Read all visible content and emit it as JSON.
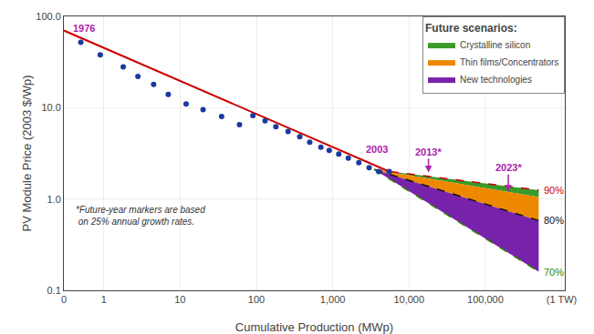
{
  "chart_data": {
    "type": "scatter",
    "xlabel": "Cumulative Production (MWp)",
    "ylabel": "PV Module Price (2003 $/Wp)",
    "log": true,
    "xlim": [
      0.3,
      1100000
    ],
    "ylim": [
      0.1,
      100.0
    ],
    "xticks": [
      {
        "value": 0.3,
        "label": "0"
      },
      1,
      10,
      100,
      {
        "value": 1000,
        "label": "1,000"
      },
      {
        "value": 10000,
        "label": "10,000"
      },
      {
        "value": 100000,
        "label": "100,000"
      },
      {
        "value": 1000000,
        "label": "(1 TW)"
      }
    ],
    "yticks": [
      0.1,
      {
        "value": 1.0,
        "label": "1.0"
      },
      {
        "value": 10.0,
        "label": "10.0"
      },
      {
        "value": 100.0,
        "label": "100.0"
      }
    ],
    "grid": true,
    "legend": "upper right",
    "legend_title": "Future scenarios:",
    "series": [
      {
        "type": "scatter",
        "marker": "circle",
        "color": "#1a3a9e",
        "x": [
          0.5,
          0.9,
          1.8,
          2.8,
          4.5,
          7.0,
          12.0,
          20.0,
          35.0,
          60.0,
          90.0,
          130.0,
          180.0,
          260.0,
          370.0,
          500.0,
          700.0,
          900.0,
          1200.0,
          1600.0,
          2200.0,
          3000.0,
          4000.0,
          5500.0
        ],
        "values": [
          52.0,
          38.0,
          28.0,
          22.0,
          18.0,
          14.0,
          11.0,
          9.5,
          8.0,
          6.5,
          8.2,
          7.2,
          6.2,
          5.5,
          4.8,
          4.2,
          3.7,
          3.4,
          3.1,
          2.8,
          2.5,
          2.2,
          2.0,
          2.0
        ]
      },
      {
        "type": "line",
        "line_style": "solid",
        "color": "#cc0000",
        "x": [
          0.3,
          5500
        ],
        "values": [
          70.0,
          2.0
        ]
      },
      {
        "type": "area",
        "name": "Crystalline silicon",
        "color": "#3a9a2a",
        "x": [
          3500.0,
          500000.0
        ],
        "lower": [
          2.1,
          1.05
        ],
        "upper": [
          2.1,
          1.25
        ]
      },
      {
        "type": "area",
        "name": "Thin films/Concentrators",
        "color": "#ee8800",
        "x": [
          3500.0,
          500000.0
        ],
        "lower": [
          2.1,
          0.58
        ],
        "upper": [
          2.1,
          1.05
        ]
      },
      {
        "type": "area",
        "name": "New technologies",
        "color": "#7722aa",
        "x": [
          3500.0,
          500000.0
        ],
        "lower": [
          2.1,
          0.16
        ],
        "upper": [
          2.1,
          0.58
        ]
      },
      {
        "type": "line",
        "line_style": "dashed",
        "color": "#cc0000",
        "x": [
          3500.0,
          500000.0
        ],
        "values": [
          2.1,
          1.25
        ],
        "label": "90%"
      },
      {
        "type": "line",
        "line_style": "dashed",
        "color": "#111111",
        "x": [
          3500.0,
          500000.0
        ],
        "values": [
          2.1,
          0.58
        ],
        "label": "80%"
      },
      {
        "type": "line",
        "line_style": "dashed",
        "color": "#2a8a00",
        "x": [
          3500.0,
          500000.0
        ],
        "values": [
          2.1,
          0.16
        ],
        "label": "70%"
      }
    ],
    "annotations": [
      {
        "text": "1976",
        "x": 0.55,
        "y": 62,
        "color": "#aa22aa"
      },
      {
        "text": "2003",
        "x": 3800.0,
        "y": 2.9,
        "color": "#aa22aa"
      },
      {
        "text": "2013*",
        "x": 18000.0,
        "y": 3.3,
        "arrow_y": 1.95,
        "color": "#aa22aa"
      },
      {
        "text": "2023*",
        "x": 200000.0,
        "y": 2.2,
        "arrow_y": 1.2,
        "color": "#aa22aa"
      }
    ],
    "note": "*Future-year markers are based\n on 25% annual growth rates."
  }
}
